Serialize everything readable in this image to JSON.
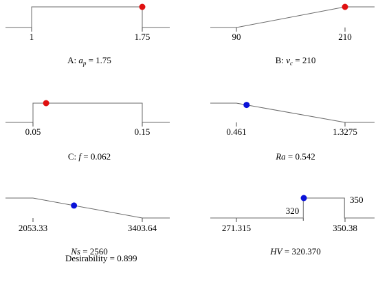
{
  "chart_data": [
    {
      "type": "desirability-ramp",
      "goal": "in-range",
      "low": "1",
      "high": "1.75",
      "current": 1.75,
      "label_prefix": "A: ",
      "var": "a",
      "sub": "p",
      "label_value": " = 1.75",
      "marker": "#e01010"
    },
    {
      "type": "desirability-ramp",
      "goal": "maximize",
      "low": "90",
      "high": "210",
      "current": 210,
      "label_prefix": "B: ",
      "var": "v",
      "sub": "c",
      "label_value": " = 210",
      "marker": "#e01010"
    },
    {
      "type": "desirability-ramp",
      "goal": "in-range",
      "low": "0.05",
      "high": "0.15",
      "current": 0.062,
      "label_prefix": "C: ",
      "var": "f",
      "sub": "",
      "label_value": " = 0.062",
      "marker": "#e01010"
    },
    {
      "type": "desirability-ramp",
      "goal": "minimize",
      "low": "0.461",
      "high": "1.3275",
      "current": 0.542,
      "label_prefix": "",
      "var": "Ra",
      "sub": "",
      "label_value": " = 0.542",
      "marker": "#0a12d8"
    },
    {
      "type": "desirability-ramp",
      "goal": "minimize",
      "low": "2053.33",
      "high": "3403.64",
      "current": 2560,
      "label_prefix": "",
      "var": "Ns",
      "sub": "",
      "label_value": " = 2560",
      "marker": "#0a12d8"
    },
    {
      "type": "desirability-ramp",
      "goal": "target",
      "low": "271.315",
      "target": "320",
      "high": "350.38",
      "target_high": "350",
      "current": 320.37,
      "label_prefix": "",
      "var": "HV",
      "sub": "",
      "label_value": " = 320.370",
      "marker": "#0a12d8"
    }
  ],
  "desirability": "Desirability = 0.899",
  "colors": {
    "line": "#6a6a6a",
    "red": "#e01010",
    "blue": "#0a12d8"
  }
}
